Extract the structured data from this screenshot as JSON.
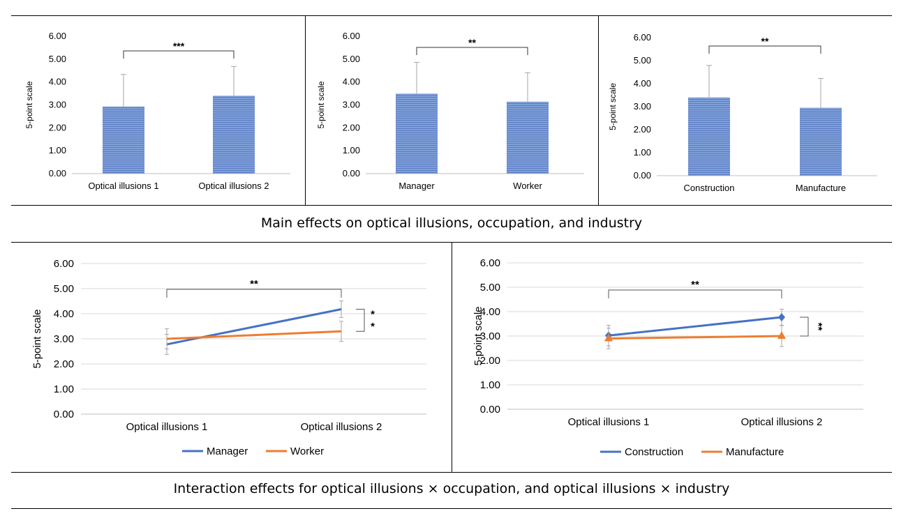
{
  "captions": {
    "top": "Main effects on optical illusions, occupation, and industry",
    "bottom": "Interaction effects for optical illusions × occupation, and optical illusions × industry"
  },
  "colors": {
    "bar_fill": "#7f9fd8",
    "bar_stripe": "#5b7cc4",
    "series_blue": "#4472c4",
    "series_orange": "#ed7d31",
    "error_bar": "#a6a6a6",
    "axis": "#bfbfbf",
    "grid": "#d9d9d9"
  },
  "chart_data": [
    {
      "type": "bar",
      "ylabel": "5-point scale",
      "ylim": [
        0,
        6
      ],
      "yticks": [
        "0.00",
        "1.00",
        "2.00",
        "3.00",
        "4.00",
        "5.00",
        "6.00"
      ],
      "categories": [
        "Optical illusions 1",
        "Optical illusions 2"
      ],
      "values": [
        2.93,
        3.4
      ],
      "errors": [
        1.4,
        1.28
      ],
      "significance": "***",
      "grid": false,
      "legend": "none"
    },
    {
      "type": "bar",
      "ylabel": "5-point scale",
      "ylim": [
        0,
        6
      ],
      "yticks": [
        "0.00",
        "1.00",
        "2.00",
        "3.00",
        "4.00",
        "5.00",
        "6.00"
      ],
      "categories": [
        "Manager",
        "Worker"
      ],
      "values": [
        3.49,
        3.14
      ],
      "errors": [
        1.37,
        1.27
      ],
      "significance": "**",
      "grid": false,
      "legend": "none"
    },
    {
      "type": "bar",
      "ylabel": "5-point scale",
      "ylim": [
        0,
        6
      ],
      "yticks": [
        "0.00",
        "1.00",
        "2.00",
        "3.00",
        "4.00",
        "5.00",
        "6.00"
      ],
      "categories": [
        "Construction",
        "Manufacture"
      ],
      "values": [
        3.4,
        2.95
      ],
      "errors": [
        1.39,
        1.28
      ],
      "significance": "**",
      "grid": false,
      "legend": "none"
    },
    {
      "type": "line",
      "ylabel": "5-point scale",
      "ylim": [
        0,
        6
      ],
      "yticks": [
        "0.00",
        "1.00",
        "2.00",
        "3.00",
        "4.00",
        "5.00",
        "6.00"
      ],
      "categories": [
        "Optical illusions 1",
        "Optical illusions 2"
      ],
      "series": [
        {
          "name": "Manager",
          "values": [
            2.78,
            4.18
          ],
          "errors": [
            0.4,
            0.33
          ],
          "marker": "none"
        },
        {
          "name": "Worker",
          "values": [
            3.0,
            3.3
          ],
          "errors": [
            0.4,
            0.4
          ],
          "marker": "none"
        }
      ],
      "significance": "**",
      "side_significance": [
        "*",
        "*"
      ],
      "grid": true,
      "legend": "bottom"
    },
    {
      "type": "line",
      "ylabel": "5-point scale",
      "ylim": [
        0,
        6
      ],
      "yticks": [
        "0.00",
        "1.00",
        "2.00",
        "3.00",
        "4.00",
        "5.00",
        "6.00"
      ],
      "categories": [
        "Optical illusions 1",
        "Optical illusions 2"
      ],
      "series": [
        {
          "name": "Construction",
          "values": [
            3.02,
            3.77
          ],
          "errors": [
            0.42,
            0.33
          ],
          "marker": "diamond"
        },
        {
          "name": "Manufacture",
          "values": [
            2.9,
            3.0
          ],
          "errors": [
            0.42,
            0.43
          ],
          "marker": "triangle"
        }
      ],
      "significance": "**",
      "side_significance": [
        "**"
      ],
      "grid": true,
      "legend": "bottom"
    }
  ]
}
